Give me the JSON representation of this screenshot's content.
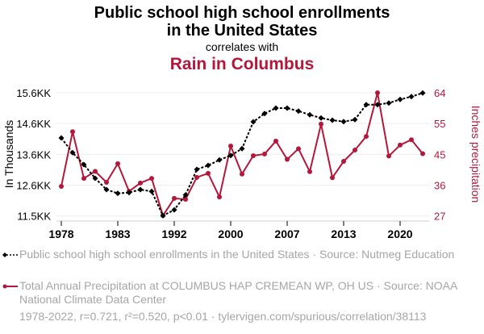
{
  "header": {
    "title_line1": "Public school high school enrollments",
    "title_line2": "in the United States",
    "subtitle": "correlates with",
    "title2": "Rain in Columbus"
  },
  "colors": {
    "series1": "#000000",
    "series2": "#b5173a",
    "grid": "#eeeeee",
    "axis": "#cccccc",
    "legend_text": "#a6a6a6"
  },
  "chart_data": {
    "type": "line",
    "title": "Public school high school enrollments in the United States correlates with Rain in Columbus",
    "x": [
      0,
      1,
      2,
      3,
      4,
      5,
      6,
      7,
      8,
      9,
      10,
      11,
      12,
      13,
      14,
      15,
      16,
      17,
      18,
      19,
      20,
      21,
      22,
      23,
      24,
      25,
      26,
      27,
      28,
      29,
      30,
      31,
      32
    ],
    "x_ticks": [
      {
        "at": 0,
        "label": "1978"
      },
      {
        "at": 5,
        "label": "1983"
      },
      {
        "at": 10,
        "label": "1992"
      },
      {
        "at": 15,
        "label": "2000"
      },
      {
        "at": 20,
        "label": "2007"
      },
      {
        "at": 25,
        "label": "2013"
      },
      {
        "at": 30,
        "label": "2020"
      }
    ],
    "xlim": [
      0,
      32
    ],
    "y_left": {
      "label": "In Thousands",
      "range": [
        11550,
        15600
      ],
      "ticks": [
        {
          "value": 15600,
          "label": "15.6KK"
        },
        {
          "value": 14587.5,
          "label": "14.6KK"
        },
        {
          "value": 13575,
          "label": "13.6KK"
        },
        {
          "value": 12562.5,
          "label": "12.6KK"
        },
        {
          "value": 11550,
          "label": "11.5KK"
        }
      ]
    },
    "y_right": {
      "label": "Inches precipitation",
      "range": [
        27,
        64
      ],
      "ticks": [
        {
          "value": 64,
          "label": "64"
        },
        {
          "value": 54.75,
          "label": "55"
        },
        {
          "value": 45.5,
          "label": "45"
        },
        {
          "value": 36.25,
          "label": "36"
        },
        {
          "value": 27,
          "label": "27"
        }
      ]
    },
    "grid": true,
    "series": [
      {
        "name": "Public school high school enrollments in the United States",
        "axis": "left",
        "style": "dotted-diamond",
        "values": [
          14115,
          13630,
          13240,
          12789,
          12418,
          12293,
          12319,
          12418,
          12357,
          11561,
          11751,
          12240,
          13081,
          13213,
          13391,
          13539,
          13762,
          14645,
          14918,
          15096,
          15096,
          14998,
          14876,
          14770,
          14698,
          14653,
          14717,
          15210,
          15210,
          15263,
          15380,
          15475,
          15592
        ]
      },
      {
        "name": "Total Annual Precipitation at COLUMBUS HAP CREMEAN WP, OH US",
        "axis": "right",
        "style": "solid-circle",
        "values": [
          35.9,
          52.3,
          38.3,
          40.4,
          37.1,
          42.7,
          34.4,
          36.9,
          38.3,
          27.1,
          32.3,
          32.0,
          38.6,
          39.8,
          32.7,
          48.0,
          39.6,
          45.1,
          45.6,
          49.5,
          44.0,
          47.2,
          40.3,
          54.6,
          38.5,
          43.4,
          46.8,
          50.9,
          64.0,
          45.0,
          48.3,
          49.9,
          45.7
        ]
      }
    ],
    "legend_position": "bottom"
  },
  "legend": {
    "item1": "Public school high school enrollments in the United States · Source: Nutmeg Education",
    "item2": "Total Annual Precipitation at COLUMBUS HAP CREMEAN WP, OH US · Source: NOAA National Climate Data Center"
  },
  "footer": "1978-2022, r=0.721, r²=0.520, p<0.01 · tylervigen.com/spurious/correlation/38113"
}
